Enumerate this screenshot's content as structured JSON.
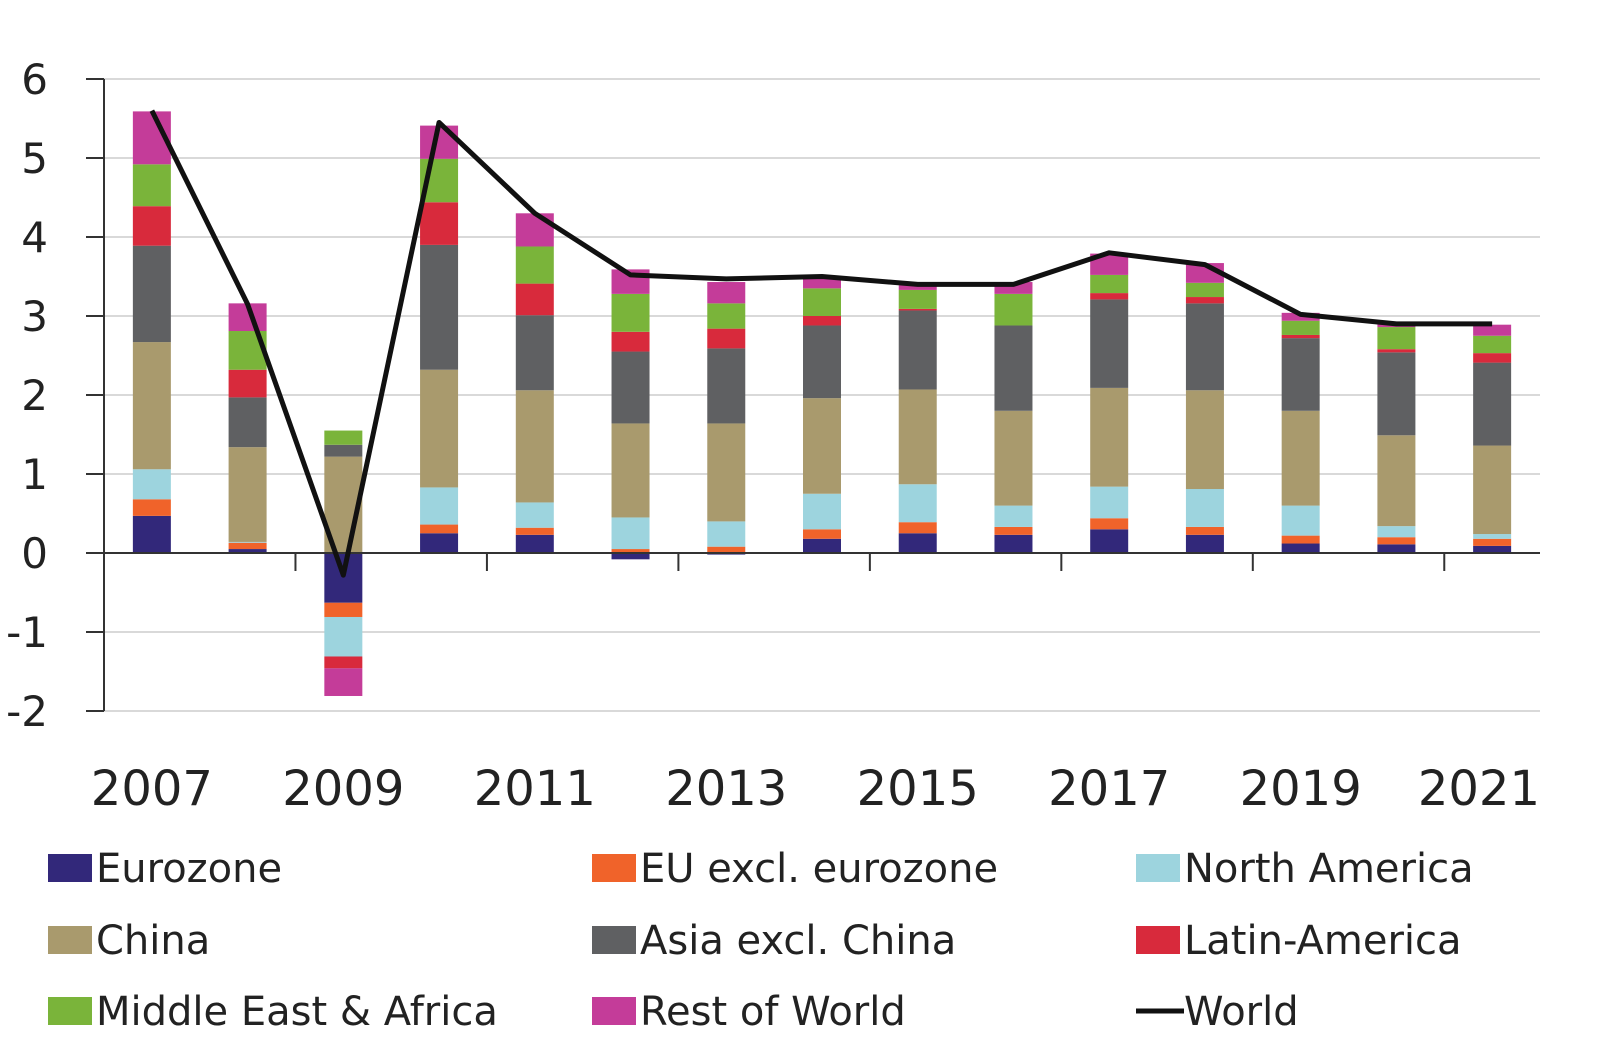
{
  "chart_data": {
    "type": "bar",
    "subtype": "stacked",
    "title": "",
    "xlabel": "",
    "ylabel": "",
    "ylim": [
      -2,
      6
    ],
    "yticks": [
      6,
      5,
      4,
      3,
      2,
      1,
      0,
      -1,
      -2
    ],
    "grid": true,
    "categories": [
      "2007",
      "2008",
      "2009",
      "2010",
      "2011",
      "2012",
      "2013",
      "2014",
      "2015",
      "2016",
      "2017",
      "2018",
      "2019",
      "2020",
      "2021"
    ],
    "xtick_labels": [
      "2007",
      "2009",
      "2011",
      "2013",
      "2015",
      "2017",
      "2019",
      "2021"
    ],
    "series": [
      {
        "name": "Eurozone",
        "color": "#32287a",
        "values": [
          0.47,
          0.05,
          -0.63,
          0.25,
          0.23,
          -0.08,
          -0.02,
          0.18,
          0.25,
          0.23,
          0.3,
          0.23,
          0.12,
          0.11,
          0.09
        ]
      },
      {
        "name": "EU excl. eurozone",
        "color": "#f0632a",
        "values": [
          0.21,
          0.08,
          -0.18,
          0.11,
          0.09,
          0.05,
          0.08,
          0.12,
          0.14,
          0.1,
          0.14,
          0.1,
          0.1,
          0.09,
          0.09
        ]
      },
      {
        "name": "North America",
        "color": "#9dd4de",
        "values": [
          0.38,
          0.01,
          -0.5,
          0.47,
          0.32,
          0.4,
          0.32,
          0.45,
          0.48,
          0.27,
          0.4,
          0.48,
          0.38,
          0.14,
          0.06
        ]
      },
      {
        "name": "China",
        "color": "#a99a6d",
        "values": [
          1.61,
          1.2,
          1.22,
          1.49,
          1.42,
          1.19,
          1.24,
          1.21,
          1.2,
          1.2,
          1.25,
          1.25,
          1.2,
          1.15,
          1.12
        ]
      },
      {
        "name": "Asia excl. China",
        "color": "#5f6062",
        "values": [
          1.22,
          0.63,
          0.15,
          1.58,
          0.95,
          0.91,
          0.95,
          0.92,
          1.0,
          1.08,
          1.12,
          1.1,
          0.92,
          1.05,
          1.05
        ]
      },
      {
        "name": "Latin-America",
        "color": "#d82a3c",
        "values": [
          0.5,
          0.35,
          -0.15,
          0.54,
          0.4,
          0.25,
          0.25,
          0.12,
          0.02,
          0.0,
          0.08,
          0.08,
          0.04,
          0.04,
          0.12
        ]
      },
      {
        "name": "Middle East & Africa",
        "color": "#7ab43a",
        "values": [
          0.53,
          0.49,
          0.18,
          0.55,
          0.47,
          0.48,
          0.32,
          0.35,
          0.24,
          0.4,
          0.23,
          0.18,
          0.18,
          0.28,
          0.22
        ]
      },
      {
        "name": "Rest of World",
        "color": "#c43c99",
        "values": [
          0.67,
          0.35,
          -0.35,
          0.42,
          0.42,
          0.31,
          0.27,
          0.14,
          0.06,
          0.15,
          0.27,
          0.25,
          0.1,
          0.06,
          0.14
        ]
      }
    ],
    "line_series": {
      "name": "World",
      "color": "#111111",
      "values": [
        5.6,
        3.15,
        -0.28,
        5.45,
        4.3,
        3.52,
        3.47,
        3.5,
        3.4,
        3.4,
        3.8,
        3.65,
        3.02,
        2.9,
        2.9
      ]
    },
    "legend": {
      "position": "bottom",
      "columns": 3,
      "items": [
        "Eurozone",
        "EU excl. eurozone",
        "North America",
        "China",
        "Asia excl. China",
        "Latin-America",
        "Middle East & Africa",
        "Rest of World",
        "World"
      ]
    }
  }
}
